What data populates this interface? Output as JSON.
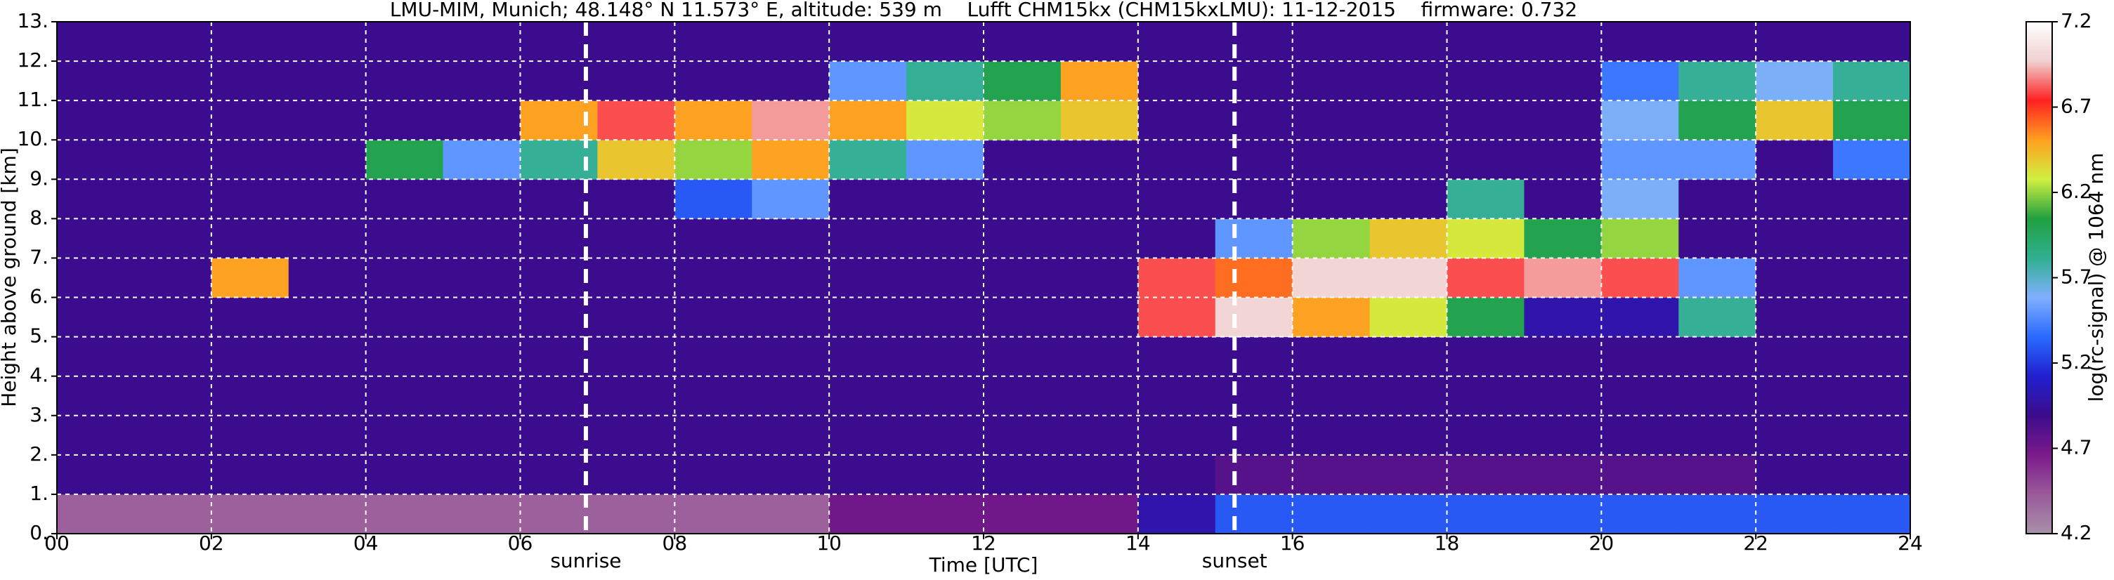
{
  "chart_data": {
    "type": "heatmap",
    "title": "LMU-MIM, Munich; 48.148° N 11.573° E, altitude: 539 m    Lufft CHM15kx (CHM15kxLMU): 11-12-2015    firmware: 0.732",
    "xlabel": "Time [UTC]",
    "ylabel": "Height above ground [km]",
    "colorbar_label": "log(rc-signal) @ 1064 nm",
    "xbins": [
      0,
      1,
      2,
      3,
      4,
      5,
      6,
      7,
      8,
      9,
      10,
      11,
      12,
      13,
      14,
      15,
      16,
      17,
      18,
      19,
      20,
      21,
      22,
      23,
      24
    ],
    "ybins": [
      0,
      1,
      2,
      3,
      4,
      5,
      6,
      7,
      8,
      9,
      10,
      11,
      12,
      13
    ],
    "z": [
      [
        4.4,
        4.4,
        4.4,
        4.4,
        4.4,
        4.4,
        4.4,
        4.4,
        4.4,
        4.4,
        4.7,
        4.7,
        4.7,
        4.7,
        5.0,
        5.3,
        5.3,
        5.3,
        5.3,
        5.3,
        5.3,
        5.3,
        5.3,
        5.3
      ],
      [
        4.9,
        4.9,
        4.9,
        4.9,
        4.9,
        4.9,
        4.9,
        4.9,
        4.9,
        4.9,
        4.9,
        4.9,
        4.9,
        4.9,
        4.9,
        4.8,
        4.8,
        4.8,
        4.8,
        4.8,
        4.8,
        4.8,
        4.9,
        4.9
      ],
      [
        4.9,
        4.9,
        4.9,
        4.9,
        4.9,
        4.9,
        4.9,
        4.9,
        4.9,
        4.9,
        4.9,
        4.9,
        4.9,
        4.9,
        4.9,
        4.9,
        4.9,
        4.9,
        4.9,
        4.9,
        4.9,
        4.9,
        4.9,
        4.9
      ],
      [
        4.9,
        4.9,
        4.9,
        4.9,
        4.9,
        4.9,
        4.9,
        4.9,
        4.9,
        4.9,
        4.9,
        4.9,
        4.9,
        4.9,
        4.9,
        4.9,
        4.9,
        4.9,
        4.9,
        4.9,
        4.9,
        4.9,
        4.9,
        4.9
      ],
      [
        4.9,
        4.9,
        4.9,
        4.9,
        4.9,
        4.9,
        4.9,
        4.9,
        4.9,
        4.9,
        4.9,
        4.9,
        4.9,
        4.9,
        4.9,
        4.9,
        4.9,
        4.9,
        4.9,
        4.9,
        4.9,
        4.9,
        4.9,
        4.9
      ],
      [
        4.9,
        4.9,
        4.9,
        4.9,
        4.9,
        4.9,
        4.9,
        4.9,
        4.9,
        4.9,
        4.9,
        4.9,
        4.9,
        4.9,
        6.8,
        7.0,
        6.5,
        6.3,
        6.0,
        5.0,
        5.0,
        5.8,
        4.9,
        4.9
      ],
      [
        4.9,
        4.9,
        6.5,
        4.9,
        4.9,
        4.9,
        4.9,
        4.9,
        4.9,
        4.9,
        4.9,
        4.9,
        4.9,
        4.9,
        6.8,
        6.6,
        7.0,
        7.0,
        6.8,
        6.9,
        6.8,
        5.5,
        4.9,
        4.9
      ],
      [
        4.9,
        4.9,
        4.9,
        4.9,
        4.9,
        4.9,
        4.9,
        4.9,
        4.9,
        4.9,
        4.9,
        4.9,
        4.9,
        4.9,
        4.9,
        5.5,
        6.2,
        6.4,
        6.3,
        6.0,
        6.2,
        4.9,
        4.9,
        4.9
      ],
      [
        4.9,
        4.9,
        4.9,
        4.9,
        4.9,
        4.9,
        4.9,
        4.9,
        5.3,
        5.5,
        4.9,
        4.9,
        4.9,
        4.9,
        4.9,
        4.9,
        4.9,
        4.9,
        5.8,
        4.9,
        5.6,
        4.9,
        4.9,
        4.9
      ],
      [
        4.9,
        4.9,
        4.9,
        4.9,
        6.0,
        5.5,
        5.8,
        6.4,
        6.2,
        6.5,
        5.8,
        5.5,
        4.9,
        4.9,
        4.9,
        4.9,
        4.9,
        4.9,
        4.9,
        4.9,
        5.5,
        5.5,
        4.9,
        5.4
      ],
      [
        4.9,
        4.9,
        4.9,
        4.9,
        4.9,
        4.9,
        6.5,
        6.8,
        6.5,
        6.9,
        6.5,
        6.3,
        6.2,
        6.4,
        4.9,
        4.9,
        4.9,
        4.9,
        4.9,
        4.9,
        5.6,
        6.0,
        6.4,
        6.0
      ],
      [
        4.9,
        4.9,
        4.9,
        4.9,
        4.9,
        4.9,
        4.9,
        4.9,
        4.9,
        4.9,
        5.5,
        5.8,
        6.0,
        6.5,
        4.9,
        4.9,
        4.9,
        4.9,
        4.9,
        4.9,
        5.4,
        5.8,
        5.6,
        5.8
      ],
      [
        4.9,
        4.9,
        4.9,
        4.9,
        4.9,
        4.9,
        4.9,
        4.9,
        4.9,
        4.9,
        4.9,
        4.9,
        4.9,
        4.9,
        4.9,
        4.9,
        4.9,
        4.9,
        4.9,
        4.9,
        4.9,
        4.9,
        4.9,
        4.9
      ]
    ],
    "xlim": [
      0,
      24
    ],
    "ylim": [
      0,
      13
    ],
    "xticks": [
      {
        "value": 0,
        "label": "00"
      },
      {
        "value": 2,
        "label": "02"
      },
      {
        "value": 4,
        "label": "04"
      },
      {
        "value": 6,
        "label": "06"
      },
      {
        "value": 8,
        "label": "08"
      },
      10,
      12,
      14,
      16,
      18,
      20,
      22,
      24
    ],
    "yticks": [
      {
        "value": 0,
        "label": "0."
      },
      {
        "value": 1,
        "label": "1."
      },
      {
        "value": 2,
        "label": "2."
      },
      {
        "value": 3,
        "label": "3."
      },
      {
        "value": 4,
        "label": "4."
      },
      {
        "value": 5,
        "label": "5."
      },
      {
        "value": 6,
        "label": "6."
      },
      {
        "value": 7,
        "label": "7."
      },
      {
        "value": 8,
        "label": "8."
      },
      {
        "value": 9,
        "label": "9."
      },
      {
        "value": 10,
        "label": "10."
      },
      {
        "value": 11,
        "label": "11."
      },
      {
        "value": 12,
        "label": "12."
      },
      {
        "value": 13,
        "label": "13."
      }
    ],
    "clim": [
      4.2,
      7.2
    ],
    "cticks": [
      4.2,
      4.7,
      5.2,
      5.7,
      6.2,
      6.7,
      7.2
    ],
    "colormap": [
      "#a890a8",
      "#9a5a9a",
      "#7a1a8a",
      "#3c0c8c",
      "#2020d0",
      "#2a6aff",
      "#80b0ff",
      "#30b090",
      "#20a040",
      "#d0f040",
      "#ffa020",
      "#ff2020",
      "#f0d0d0",
      "#ffffff"
    ],
    "grid": true,
    "annotations": [
      {
        "x": 6.85,
        "label": "sunrise"
      },
      {
        "x": 15.25,
        "label": "sunset"
      }
    ]
  }
}
